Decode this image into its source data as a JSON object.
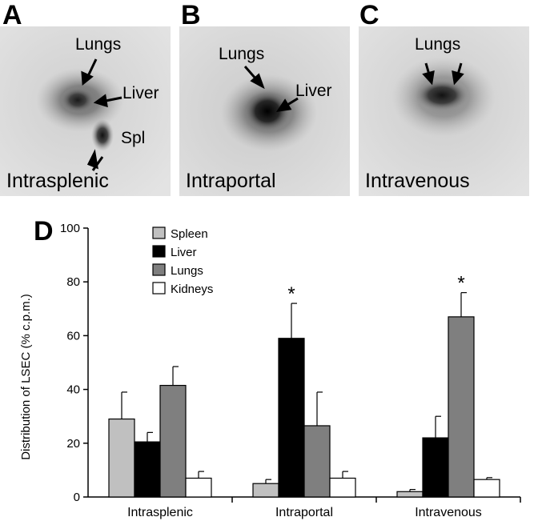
{
  "panels": [
    {
      "letter": "A",
      "route": "Intrasplenic",
      "labels": [
        "Lungs",
        "Liver",
        "Spl"
      ]
    },
    {
      "letter": "B",
      "route": "Intraportal",
      "labels": [
        "Lungs",
        "Liver"
      ]
    },
    {
      "letter": "C",
      "route": "Intravenous",
      "labels": [
        "Lungs"
      ]
    }
  ],
  "chart_letter": "D",
  "chart_data": {
    "type": "bar",
    "categories": [
      "Intrasplenic",
      "Intraportal",
      "Intravenous"
    ],
    "series": [
      {
        "name": "Spleen",
        "color": "#c0c0c0",
        "values": [
          29,
          5,
          2
        ],
        "errors": [
          10,
          1.5,
          0.8
        ]
      },
      {
        "name": "Liver",
        "color": "#000000",
        "values": [
          20.5,
          59,
          22
        ],
        "errors": [
          3.5,
          13,
          8
        ]
      },
      {
        "name": "Lungs",
        "color": "#7f7f7f",
        "values": [
          41.5,
          26.5,
          67
        ],
        "errors": [
          7,
          12.5,
          9
        ]
      },
      {
        "name": "Kidneys",
        "color": "#ffffff",
        "values": [
          7,
          7,
          6.5
        ],
        "errors": [
          2.5,
          2.5,
          0.7
        ]
      }
    ],
    "significance": [
      {
        "category": "Intraportal",
        "series": "Liver",
        "mark": "*"
      },
      {
        "category": "Intravenous",
        "series": "Lungs",
        "mark": "*"
      }
    ],
    "ylabel": "Distribution of LSEC (% c.p.m.)",
    "ylim": [
      0,
      100
    ],
    "yticks": [
      0,
      20,
      40,
      60,
      80,
      100
    ],
    "legend_position": "top-left",
    "grid": false
  }
}
